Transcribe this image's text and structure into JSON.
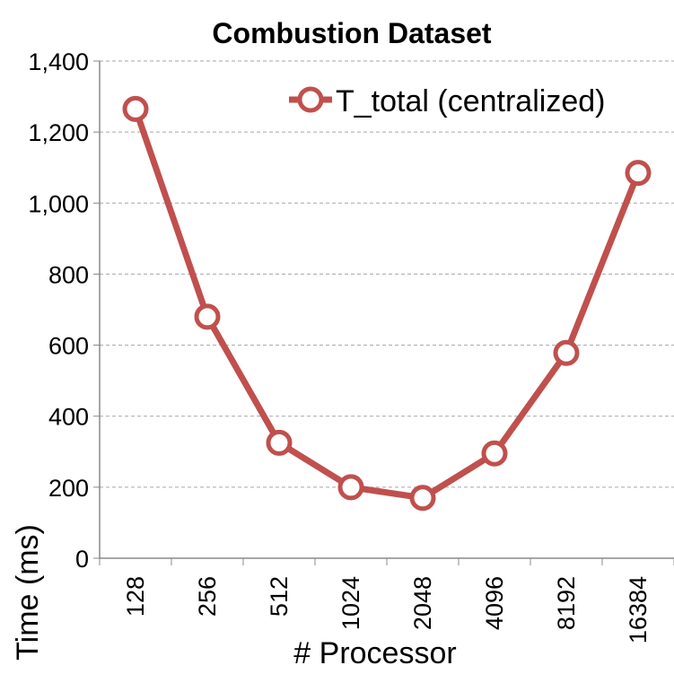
{
  "chart_data": {
    "type": "line",
    "title": "Combustion Dataset",
    "xlabel": "# Processor",
    "ylabel": "Time (ms)",
    "categories": [
      "128",
      "256",
      "512",
      "1024",
      "2048",
      "4096",
      "8192",
      "16384"
    ],
    "series": [
      {
        "name": "T_total (centralized)",
        "values": [
          1265,
          680,
          325,
          200,
          170,
          295,
          578,
          1085
        ],
        "color": "#c0504d"
      }
    ],
    "ylim": [
      0,
      1400
    ],
    "yticks": [
      0,
      200,
      400,
      600,
      800,
      1000,
      1200,
      1400
    ],
    "ytick_labels": [
      "0",
      "200",
      "400",
      "600",
      "800",
      "1,000",
      "1,200",
      "1,400"
    ],
    "grid": "horizontal dashed",
    "legend_position": "top-right"
  }
}
